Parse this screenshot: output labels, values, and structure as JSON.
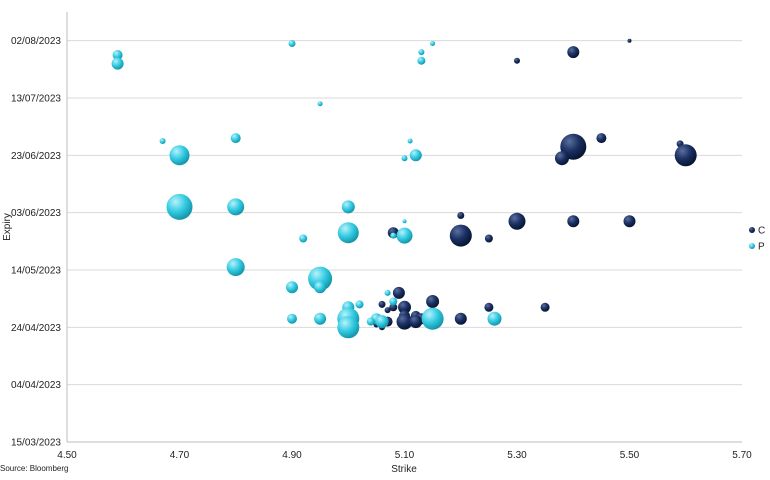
{
  "chart_data": {
    "type": "scatter",
    "subtype": "bubble",
    "title": "",
    "xlabel": "Strike",
    "ylabel": "Expiry",
    "xlim": [
      4.5,
      5.7
    ],
    "ylim": [
      "2023-03-15",
      "2023-08-12"
    ],
    "x_ticks": [
      "4.50",
      "4.70",
      "4.90",
      "5.10",
      "5.30",
      "5.50",
      "5.70"
    ],
    "y_ticks": [
      {
        "date": "2023-03-15",
        "label": "15/03/2023"
      },
      {
        "date": "2023-04-04",
        "label": "04/04/2023"
      },
      {
        "date": "2023-04-24",
        "label": "24/04/2023"
      },
      {
        "date": "2023-05-14",
        "label": "14/05/2023"
      },
      {
        "date": "2023-06-03",
        "label": "03/06/2023"
      },
      {
        "date": "2023-06-23",
        "label": "23/06/2023"
      },
      {
        "date": "2023-07-13",
        "label": "13/07/2023"
      },
      {
        "date": "2023-08-02",
        "label": "02/08/2023"
      }
    ],
    "grid": {
      "horizontal": true,
      "vertical": false
    },
    "legend_position": "right",
    "source": "Source: Bloomberg",
    "series": [
      {
        "name": "C",
        "color": "#0d2250",
        "points": [
          {
            "x": 5.5,
            "y": "2023-08-02",
            "size": 4
          },
          {
            "x": 5.4,
            "y": "2023-07-29",
            "size": 12
          },
          {
            "x": 5.3,
            "y": "2023-07-26",
            "size": 6
          },
          {
            "x": 5.45,
            "y": "2023-06-29",
            "size": 10
          },
          {
            "x": 5.59,
            "y": "2023-06-27",
            "size": 7
          },
          {
            "x": 5.4,
            "y": "2023-06-26",
            "size": 26
          },
          {
            "x": 5.38,
            "y": "2023-06-22",
            "size": 14
          },
          {
            "x": 5.6,
            "y": "2023-06-23",
            "size": 22
          },
          {
            "x": 5.2,
            "y": "2023-06-02",
            "size": 7
          },
          {
            "x": 5.3,
            "y": "2023-05-31",
            "size": 17
          },
          {
            "x": 5.4,
            "y": "2023-05-31",
            "size": 12
          },
          {
            "x": 5.5,
            "y": "2023-05-31",
            "size": 12
          },
          {
            "x": 5.08,
            "y": "2023-05-27",
            "size": 11
          },
          {
            "x": 5.2,
            "y": "2023-05-26",
            "size": 22
          },
          {
            "x": 5.25,
            "y": "2023-05-25",
            "size": 8
          },
          {
            "x": 5.09,
            "y": "2023-05-06",
            "size": 12
          },
          {
            "x": 5.15,
            "y": "2023-05-03",
            "size": 13
          },
          {
            "x": 5.06,
            "y": "2023-05-02",
            "size": 7
          },
          {
            "x": 5.08,
            "y": "2023-05-01",
            "size": 8
          },
          {
            "x": 5.1,
            "y": "2023-05-01",
            "size": 13
          },
          {
            "x": 5.25,
            "y": "2023-05-01",
            "size": 9
          },
          {
            "x": 5.35,
            "y": "2023-05-01",
            "size": 9
          },
          {
            "x": 5.07,
            "y": "2023-04-30",
            "size": 6
          },
          {
            "x": 5.12,
            "y": "2023-04-28",
            "size": 10
          },
          {
            "x": 5.1,
            "y": "2023-04-28",
            "size": 11
          },
          {
            "x": 5.2,
            "y": "2023-04-27",
            "size": 12
          },
          {
            "x": 5.13,
            "y": "2023-04-27",
            "size": 11
          },
          {
            "x": 5.07,
            "y": "2023-04-26",
            "size": 10
          },
          {
            "x": 5.1,
            "y": "2023-04-26",
            "size": 16
          },
          {
            "x": 5.12,
            "y": "2023-04-26",
            "size": 13
          },
          {
            "x": 5.05,
            "y": "2023-04-25",
            "size": 6
          },
          {
            "x": 5.06,
            "y": "2023-04-24",
            "size": 6
          }
        ]
      },
      {
        "name": "P",
        "color": "#22c4dc",
        "points": [
          {
            "x": 4.59,
            "y": "2023-07-28",
            "size": 10
          },
          {
            "x": 4.59,
            "y": "2023-07-25",
            "size": 12
          },
          {
            "x": 4.9,
            "y": "2023-08-01",
            "size": 7
          },
          {
            "x": 5.15,
            "y": "2023-08-01",
            "size": 5
          },
          {
            "x": 5.13,
            "y": "2023-07-29",
            "size": 6
          },
          {
            "x": 5.13,
            "y": "2023-07-26",
            "size": 8
          },
          {
            "x": 4.95,
            "y": "2023-07-11",
            "size": 5
          },
          {
            "x": 4.8,
            "y": "2023-06-29",
            "size": 10
          },
          {
            "x": 4.67,
            "y": "2023-06-28",
            "size": 6
          },
          {
            "x": 5.11,
            "y": "2023-06-28",
            "size": 5
          },
          {
            "x": 4.7,
            "y": "2023-06-23",
            "size": 20
          },
          {
            "x": 5.12,
            "y": "2023-06-23",
            "size": 12
          },
          {
            "x": 5.1,
            "y": "2023-06-22",
            "size": 6
          },
          {
            "x": 4.7,
            "y": "2023-06-05",
            "size": 26
          },
          {
            "x": 4.8,
            "y": "2023-06-05",
            "size": 17
          },
          {
            "x": 5.0,
            "y": "2023-06-05",
            "size": 13
          },
          {
            "x": 5.1,
            "y": "2023-05-31",
            "size": 4
          },
          {
            "x": 5.0,
            "y": "2023-05-27",
            "size": 21
          },
          {
            "x": 5.1,
            "y": "2023-05-26",
            "size": 16
          },
          {
            "x": 5.08,
            "y": "2023-05-26",
            "size": 6
          },
          {
            "x": 4.92,
            "y": "2023-05-25",
            "size": 8
          },
          {
            "x": 4.8,
            "y": "2023-05-15",
            "size": 18
          },
          {
            "x": 4.95,
            "y": "2023-05-11",
            "size": 24
          },
          {
            "x": 4.9,
            "y": "2023-05-08",
            "size": 12
          },
          {
            "x": 4.95,
            "y": "2023-05-08",
            "size": 12
          },
          {
            "x": 5.07,
            "y": "2023-05-06",
            "size": 6
          },
          {
            "x": 5.08,
            "y": "2023-05-03",
            "size": 8
          },
          {
            "x": 5.02,
            "y": "2023-05-02",
            "size": 8
          },
          {
            "x": 5.0,
            "y": "2023-05-01",
            "size": 12
          },
          {
            "x": 4.9,
            "y": "2023-04-27",
            "size": 10
          },
          {
            "x": 4.95,
            "y": "2023-04-27",
            "size": 12
          },
          {
            "x": 5.0,
            "y": "2023-04-27",
            "size": 22
          },
          {
            "x": 5.05,
            "y": "2023-04-27",
            "size": 11
          },
          {
            "x": 5.15,
            "y": "2023-04-27",
            "size": 22
          },
          {
            "x": 5.26,
            "y": "2023-04-27",
            "size": 14
          },
          {
            "x": 5.06,
            "y": "2023-04-26",
            "size": 13
          },
          {
            "x": 5.04,
            "y": "2023-04-26",
            "size": 8
          },
          {
            "x": 5.0,
            "y": "2023-04-24",
            "size": 22
          }
        ]
      }
    ]
  }
}
